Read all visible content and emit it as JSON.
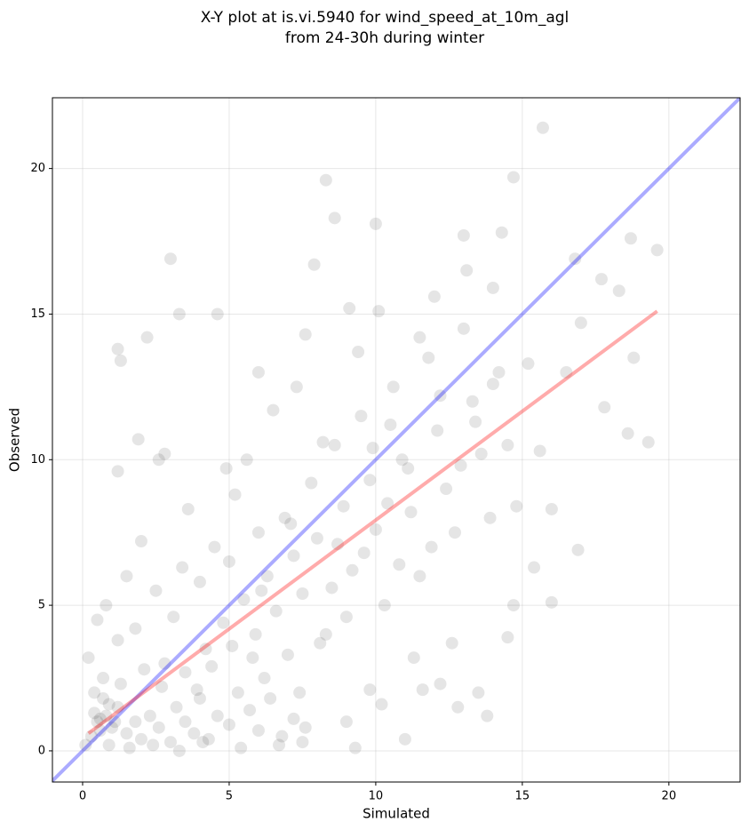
{
  "chart_data": {
    "type": "scatter",
    "title": [
      "X-Y plot at is.vi.5940 for wind_speed_at_10m_agl",
      "from 24-30h during winter"
    ],
    "x_label": "Simulated",
    "y_label": "Observed",
    "xlim": [
      -1.03,
      22.43
    ],
    "ylim": [
      -1.07,
      22.43
    ],
    "xticks": [
      0,
      5,
      10,
      15,
      20
    ],
    "yticks": [
      0,
      5,
      10,
      15,
      20
    ],
    "grid": true,
    "points": {
      "color": "#000000",
      "x": [
        0.6,
        0.5,
        0.8,
        1.0,
        1.2,
        0.3,
        0.4,
        0.7,
        1.5,
        1.8,
        2.0,
        2.3,
        2.6,
        3.0,
        3.2,
        3.5,
        3.8,
        4.0,
        4.3,
        4.6,
        5.0,
        5.3,
        5.7,
        6.0,
        6.4,
        6.8,
        7.2,
        7.6,
        0.2,
        0.5,
        0.8,
        1.2,
        1.5,
        1.8,
        2.0,
        2.5,
        2.8,
        3.1,
        3.4,
        3.6,
        4.0,
        4.2,
        4.5,
        4.8,
        5.0,
        5.2,
        5.5,
        5.8,
        6.0,
        6.3,
        6.6,
        6.9,
        7.2,
        7.5,
        7.8,
        8.0,
        8.3,
        8.6,
        8.9,
        9.2,
        9.5,
        9.8,
        10.0,
        10.3,
        10.6,
        10.9,
        11.2,
        11.5,
        11.8,
        12.1,
        12.4,
        12.7,
        13.0,
        13.3,
        13.6,
        13.9,
        14.2,
        14.5,
        14.8,
        15.2,
        15.6,
        16.0,
        16.5,
        16.9,
        17.8,
        18.3,
        18.7,
        19.3,
        19.6,
        15.7,
        14.7,
        8.3,
        8.6,
        10.0,
        13.0,
        14.3,
        3.0,
        7.9,
        1.2,
        1.3,
        2.2,
        3.3,
        4.6,
        1.2,
        2.6,
        2.8,
        1.9,
        6.0,
        7.6,
        9.1,
        10.1,
        11.5,
        12.0,
        13.1,
        14.0,
        16.8,
        17.7,
        18.6,
        18.8,
        17.0,
        11.0,
        9.3,
        9.0,
        9.8,
        10.2,
        11.6,
        12.2,
        12.8,
        13.5,
        13.8,
        12.6,
        11.3,
        14.5,
        16.0,
        15.4,
        14.7,
        0.1,
        0.9,
        1.6,
        2.4,
        3.3,
        4.1,
        5.4,
        6.7,
        7.5,
        0.7,
        1.3,
        2.1,
        2.7,
        3.5,
        4.4,
        5.1,
        5.9,
        6.2,
        7.0,
        7.4,
        8.1,
        8.5,
        9.0,
        9.6,
        10.4,
        10.8,
        11.1,
        11.9,
        12.2,
        12.9,
        13.4,
        14.0,
        4.9,
        5.6,
        6.5,
        7.3,
        8.2,
        9.4,
        3.9,
        6.1,
        7.1,
        8.7,
        9.9,
        10.5,
        0.4,
        0.9,
        1.1,
        0.6
      ],
      "y": [
        1.1,
        1.0,
        1.2,
        0.8,
        1.5,
        0.5,
        2.0,
        2.5,
        0.6,
        1.0,
        0.4,
        1.2,
        0.8,
        0.3,
        1.5,
        1.0,
        0.6,
        1.8,
        0.4,
        1.2,
        0.9,
        2.0,
        1.4,
        0.7,
        1.8,
        0.5,
        1.1,
        0.8,
        3.2,
        4.5,
        5.0,
        3.8,
        6.0,
        4.2,
        7.2,
        5.5,
        3.0,
        4.6,
        6.3,
        8.3,
        5.8,
        3.5,
        7.0,
        4.4,
        6.5,
        8.8,
        5.2,
        3.2,
        7.5,
        6.0,
        4.8,
        8.0,
        6.7,
        5.4,
        9.2,
        7.3,
        4.0,
        10.5,
        8.4,
        6.2,
        11.5,
        9.3,
        7.6,
        5.0,
        12.5,
        10.0,
        8.2,
        6.0,
        13.5,
        11.0,
        9.0,
        7.5,
        14.5,
        12.0,
        10.2,
        8.0,
        13.0,
        10.5,
        8.4,
        13.3,
        10.3,
        8.3,
        13.0,
        6.9,
        11.8,
        15.8,
        17.6,
        10.6,
        17.2,
        21.4,
        19.7,
        19.6,
        18.3,
        18.1,
        17.7,
        17.8,
        16.9,
        16.7,
        13.8,
        13.4,
        14.2,
        15.0,
        15.0,
        9.6,
        10.0,
        10.2,
        10.7,
        13.0,
        14.3,
        15.2,
        15.1,
        14.2,
        15.6,
        16.5,
        15.9,
        16.9,
        16.2,
        10.9,
        13.5,
        14.7,
        0.4,
        0.1,
        1.0,
        2.1,
        1.6,
        2.1,
        2.3,
        1.5,
        2.0,
        1.2,
        3.7,
        3.2,
        3.9,
        5.1,
        6.3,
        5.0,
        0.2,
        0.2,
        0.1,
        0.2,
        0.0,
        0.3,
        0.1,
        0.2,
        0.3,
        1.8,
        2.3,
        2.8,
        2.2,
        2.7,
        2.9,
        3.6,
        4.0,
        2.5,
        3.3,
        2.0,
        3.7,
        5.6,
        4.6,
        6.8,
        8.5,
        6.4,
        9.7,
        7.0,
        12.2,
        9.8,
        11.3,
        12.6,
        9.7,
        10.0,
        11.7,
        12.5,
        10.6,
        13.7,
        2.1,
        5.5,
        7.8,
        7.1,
        10.4,
        11.2,
        1.3,
        1.6,
        1.0,
        0.7
      ]
    },
    "lines": [
      {
        "color": "#0000ff",
        "x": [
          -1.03,
          22.43
        ],
        "y": [
          -1.03,
          22.43
        ]
      },
      {
        "color": "#ff0000",
        "x": [
          0.2,
          19.6
        ],
        "y": [
          0.6,
          15.1
        ]
      }
    ]
  }
}
